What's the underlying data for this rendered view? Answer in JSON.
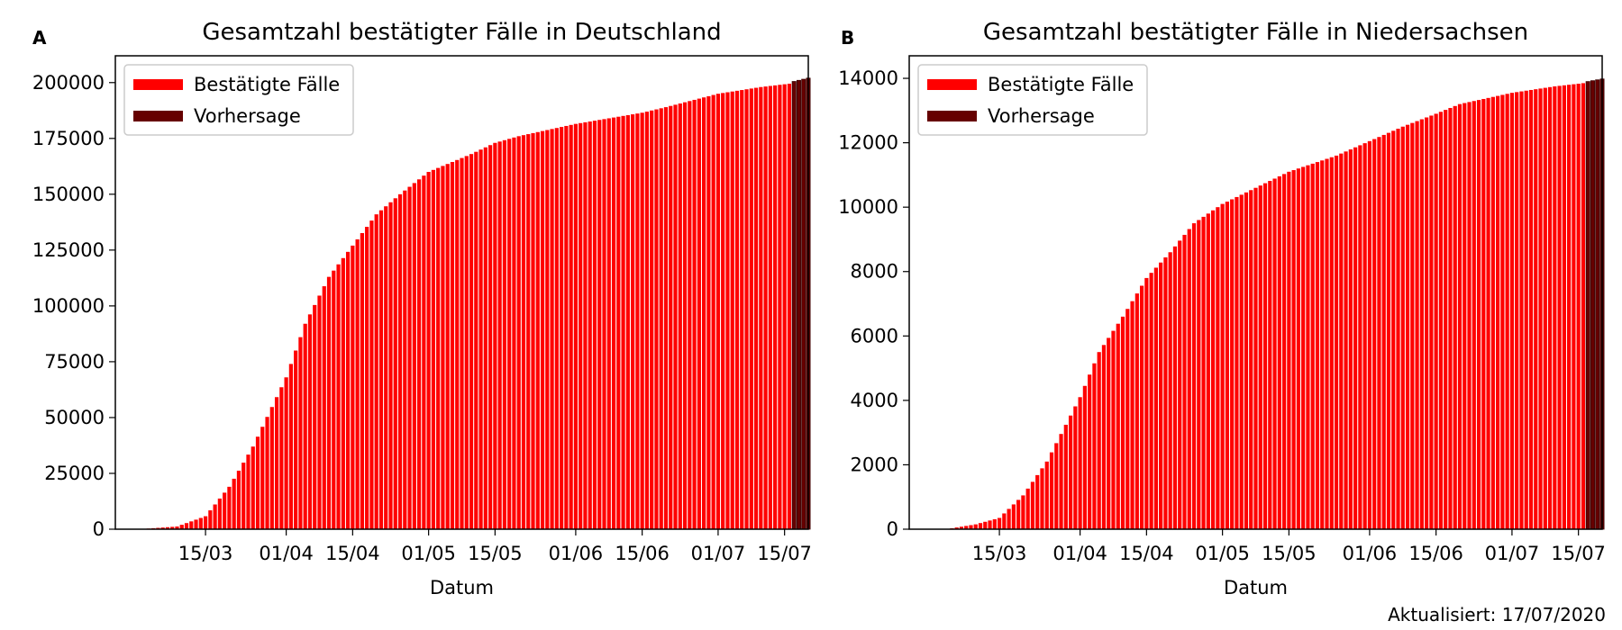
{
  "footer": "Aktualisiert: 17/07/2020",
  "colors": {
    "confirmed": "#ff0000",
    "forecast": "#660000",
    "forecast_line": "#3a0000"
  },
  "chart_data": [
    {
      "panel_label": "A",
      "type": "bar",
      "title": "Gesamtzahl bestätigter Fälle in Deutschland",
      "xlabel": "Datum",
      "ylabel": "",
      "xlim": [
        "2020-02-25",
        "2020-07-20"
      ],
      "ylim": [
        0,
        212000
      ],
      "yticks": [
        0,
        25000,
        50000,
        75000,
        100000,
        125000,
        150000,
        175000,
        200000
      ],
      "xticks": [
        {
          "date": "2020-03-15",
          "label": "15/03"
        },
        {
          "date": "2020-04-01",
          "label": "01/04"
        },
        {
          "date": "2020-04-15",
          "label": "15/04"
        },
        {
          "date": "2020-05-01",
          "label": "01/05"
        },
        {
          "date": "2020-05-15",
          "label": "15/05"
        },
        {
          "date": "2020-06-01",
          "label": "01/06"
        },
        {
          "date": "2020-06-15",
          "label": "15/06"
        },
        {
          "date": "2020-07-01",
          "label": "01/07"
        },
        {
          "date": "2020-07-15",
          "label": "15/07"
        }
      ],
      "legend": {
        "position": "upper left",
        "entries": [
          "Bestätigte Fälle",
          "Vorhersage"
        ]
      },
      "series": [
        {
          "name": "Bestätigte Fälle",
          "x_start": "2020-03-02",
          "x_end": "2020-07-16",
          "anchors": [
            [
              "2020-03-02",
              150
            ],
            [
              "2020-03-09",
              1200
            ],
            [
              "2020-03-15",
              5800
            ],
            [
              "2020-03-20",
              19000
            ],
            [
              "2020-03-25",
              37000
            ],
            [
              "2020-04-01",
              68000
            ],
            [
              "2020-04-05",
              92000
            ],
            [
              "2020-04-10",
              113000
            ],
            [
              "2020-04-15",
              127000
            ],
            [
              "2020-04-20",
              141000
            ],
            [
              "2020-04-25",
              150000
            ],
            [
              "2020-05-01",
              160000
            ],
            [
              "2020-05-10",
              168000
            ],
            [
              "2020-05-15",
              173000
            ],
            [
              "2020-05-20",
              176000
            ],
            [
              "2020-06-01",
              181500
            ],
            [
              "2020-06-15",
              186500
            ],
            [
              "2020-06-20",
              189000
            ],
            [
              "2020-07-01",
              195000
            ],
            [
              "2020-07-10",
              198000
            ],
            [
              "2020-07-16",
              199500
            ]
          ]
        },
        {
          "name": "Vorhersage",
          "x_start": "2020-07-17",
          "x_end": "2020-07-20",
          "anchors": [
            [
              "2020-07-17",
              200500
            ],
            [
              "2020-07-20",
              202000
            ]
          ]
        }
      ]
    },
    {
      "panel_label": "B",
      "type": "bar",
      "title": "Gesamtzahl bestätigter Fälle in Niedersachsen",
      "xlabel": "Datum",
      "ylabel": "",
      "xlim": [
        "2020-02-25",
        "2020-07-20"
      ],
      "ylim": [
        0,
        14700
      ],
      "yticks": [
        0,
        2000,
        4000,
        6000,
        8000,
        10000,
        12000,
        14000
      ],
      "xticks": [
        {
          "date": "2020-03-15",
          "label": "15/03"
        },
        {
          "date": "2020-04-01",
          "label": "01/04"
        },
        {
          "date": "2020-04-15",
          "label": "15/04"
        },
        {
          "date": "2020-05-01",
          "label": "01/05"
        },
        {
          "date": "2020-05-15",
          "label": "15/05"
        },
        {
          "date": "2020-06-01",
          "label": "01/06"
        },
        {
          "date": "2020-06-15",
          "label": "15/06"
        },
        {
          "date": "2020-07-01",
          "label": "01/07"
        },
        {
          "date": "2020-07-15",
          "label": "15/07"
        }
      ],
      "legend": {
        "position": "upper left",
        "entries": [
          "Bestätigte Fälle",
          "Vorhersage"
        ]
      },
      "series": [
        {
          "name": "Bestätigte Fälle",
          "x_start": "2020-03-04",
          "x_end": "2020-07-16",
          "anchors": [
            [
              "2020-03-04",
              5
            ],
            [
              "2020-03-10",
              150
            ],
            [
              "2020-03-15",
              350
            ],
            [
              "2020-03-20",
              1050
            ],
            [
              "2020-03-25",
              2100
            ],
            [
              "2020-04-01",
              4100
            ],
            [
              "2020-04-05",
              5500
            ],
            [
              "2020-04-10",
              6600
            ],
            [
              "2020-04-15",
              7800
            ],
            [
              "2020-04-20",
              8600
            ],
            [
              "2020-04-25",
              9500
            ],
            [
              "2020-05-01",
              10100
            ],
            [
              "2020-05-08",
              10600
            ],
            [
              "2020-05-15",
              11100
            ],
            [
              "2020-05-25",
              11600
            ],
            [
              "2020-06-01",
              12050
            ],
            [
              "2020-06-08",
              12500
            ],
            [
              "2020-06-15",
              12900
            ],
            [
              "2020-06-20",
              13200
            ],
            [
              "2020-07-01",
              13550
            ],
            [
              "2020-07-10",
              13750
            ],
            [
              "2020-07-16",
              13850
            ]
          ]
        },
        {
          "name": "Vorhersage",
          "x_start": "2020-07-17",
          "x_end": "2020-07-20",
          "anchors": [
            [
              "2020-07-17",
              13900
            ],
            [
              "2020-07-20",
              13980
            ]
          ]
        }
      ]
    }
  ]
}
